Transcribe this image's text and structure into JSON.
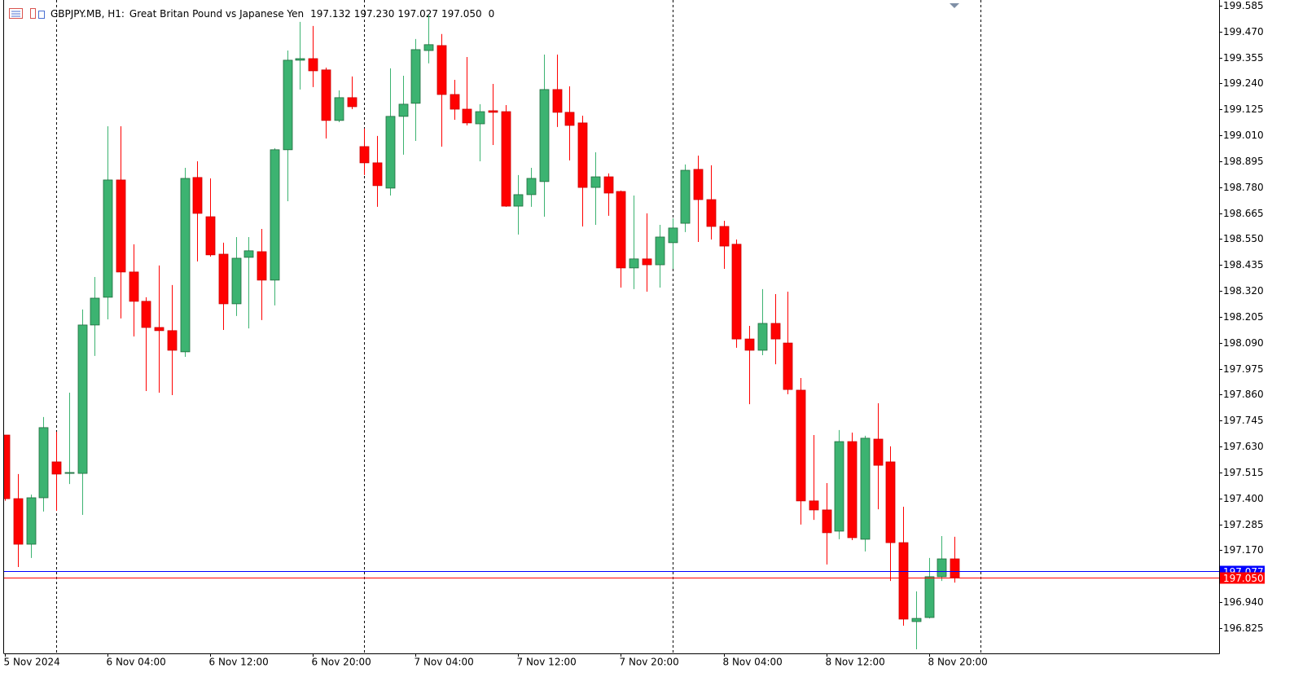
{
  "chart_data": {
    "type": "candlestick",
    "header_symbol": "GBPJPY.MB, H1:",
    "header_description": "Great Britan Pound vs Japanese Yen",
    "header_ohlc_labels": [
      "197.132",
      "197.230",
      "197.027",
      "197.050"
    ],
    "header_spread": 0,
    "categories": [
      "5 Nov 2024",
      null,
      null,
      null,
      null,
      null,
      null,
      null,
      "6 Nov 04:00",
      null,
      null,
      null,
      null,
      null,
      null,
      null,
      "6 Nov 12:00",
      null,
      null,
      null,
      null,
      null,
      null,
      null,
      "6 Nov 20:00",
      null,
      null,
      null,
      null,
      null,
      null,
      null,
      "7 Nov 04:00",
      null,
      null,
      null,
      null,
      null,
      null,
      null,
      "7 Nov 12:00",
      null,
      null,
      null,
      null,
      null,
      null,
      null,
      "7 Nov 20:00",
      null,
      null,
      null,
      null,
      null,
      null,
      null,
      "8 Nov 04:00",
      null,
      null,
      null,
      null,
      null,
      null,
      null,
      "8 Nov 12:00",
      null,
      null,
      null,
      null,
      null,
      null,
      null,
      "8 Nov 20:00",
      null,
      null
    ],
    "open": [
      197.681,
      197.399,
      197.197,
      197.403,
      197.562,
      197.511,
      197.511,
      198.169,
      198.292,
      198.812,
      198.404,
      198.274,
      198.158,
      198.144,
      198.05,
      198.823,
      198.649,
      198.483,
      198.263,
      198.469,
      198.494,
      198.368,
      198.946,
      199.343,
      199.35,
      199.3,
      199.076,
      199.177,
      198.96,
      198.888,
      198.776,
      199.094,
      199.152,
      199.386,
      199.408,
      199.191,
      199.126,
      199.061,
      199.119,
      199.115,
      198.696,
      198.747,
      198.805,
      199.213,
      199.112,
      199.065,
      198.779,
      198.826,
      198.761,
      198.422,
      198.462,
      198.436,
      198.534,
      198.62,
      198.859,
      198.725,
      198.606,
      198.527,
      198.107,
      198.057,
      198.176,
      198.089,
      197.88,
      197.389,
      197.349,
      197.255,
      197.652,
      197.219,
      197.663,
      197.562,
      197.204,
      196.854,
      196.872,
      197.053,
      197.132
    ],
    "high": [
      197.681,
      197.508,
      197.417,
      197.761,
      197.696,
      197.869,
      198.238,
      198.382,
      199.05,
      199.05,
      198.527,
      198.292,
      198.433,
      198.346,
      198.866,
      198.895,
      198.819,
      198.534,
      198.559,
      198.559,
      198.595,
      198.953,
      199.386,
      199.513,
      199.495,
      199.31,
      199.209,
      199.271,
      199.04,
      199.007,
      199.307,
      199.274,
      199.437,
      199.545,
      199.459,
      199.256,
      199.357,
      199.148,
      199.238,
      199.144,
      198.834,
      198.866,
      199.368,
      199.368,
      199.227,
      199.097,
      198.935,
      198.841,
      198.765,
      198.743,
      198.664,
      198.613,
      198.642,
      198.881,
      198.92,
      198.877,
      198.631,
      198.548,
      198.165,
      198.328,
      198.306,
      198.317,
      197.934,
      197.681,
      197.468,
      197.703,
      197.692,
      197.678,
      197.822,
      197.631,
      197.363,
      196.988,
      197.136,
      197.233,
      197.23
    ],
    "low": [
      197.39,
      197.096,
      197.136,
      197.342,
      197.345,
      197.464,
      197.327,
      198.032,
      198.194,
      198.198,
      198.118,
      197.876,
      197.869,
      197.858,
      198.028,
      198.451,
      198.472,
      198.147,
      198.209,
      198.154,
      198.191,
      198.256,
      198.718,
      199.213,
      199.224,
      198.996,
      199.068,
      199.126,
      198.834,
      198.693,
      198.743,
      198.924,
      198.985,
      199.329,
      198.96,
      199.079,
      199.054,
      198.895,
      198.967,
      198.693,
      198.57,
      198.693,
      198.649,
      199.047,
      198.899,
      198.606,
      198.613,
      198.653,
      198.335,
      198.328,
      198.317,
      198.335,
      198.418,
      198.581,
      198.537,
      198.548,
      198.418,
      198.068,
      197.818,
      198.035,
      197.995,
      197.862,
      197.284,
      197.305,
      197.107,
      197.219,
      197.215,
      197.165,
      197.352,
      197.034,
      196.836,
      196.731,
      196.868,
      197.034,
      197.027
    ],
    "close": [
      197.399,
      197.197,
      197.403,
      197.714,
      197.508,
      197.515,
      198.169,
      198.288,
      198.812,
      198.404,
      198.274,
      198.158,
      198.144,
      198.057,
      198.819,
      198.664,
      198.48,
      198.263,
      198.465,
      198.498,
      198.368,
      198.946,
      199.343,
      199.35,
      199.296,
      199.076,
      199.177,
      199.137,
      198.888,
      198.787,
      199.094,
      199.148,
      199.39,
      199.412,
      199.191,
      199.126,
      199.065,
      199.115,
      199.112,
      198.696,
      198.747,
      198.819,
      199.213,
      199.112,
      199.054,
      198.779,
      198.826,
      198.754,
      198.422,
      198.462,
      198.436,
      198.559,
      198.599,
      198.855,
      198.725,
      198.606,
      198.519,
      198.107,
      198.057,
      198.176,
      198.107,
      197.883,
      197.389,
      197.349,
      197.248,
      197.652,
      197.226,
      197.667,
      197.547,
      197.204,
      196.865,
      196.868,
      197.053,
      197.132,
      197.05
    ],
    "up_color": "#3cb371",
    "down_color": "#ff0000",
    "ylim": [
      196.713,
      199.61
    ],
    "yticks": [
      199.585,
      {
        "value": 199.47,
        "label": "199.470"
      },
      199.355,
      {
        "value": 199.24,
        "label": "199.240"
      },
      199.125,
      {
        "value": 199.01,
        "label": "199.010"
      },
      198.895,
      {
        "value": 198.78,
        "label": "198.780"
      },
      198.665,
      {
        "value": 198.55,
        "label": "198.550"
      },
      198.435,
      {
        "value": 198.32,
        "label": "198.320"
      },
      198.205,
      {
        "value": 198.09,
        "label": "198.090"
      },
      197.975,
      {
        "value": 197.86,
        "label": "197.860"
      },
      197.745,
      {
        "value": 197.63,
        "label": "197.630"
      },
      197.515,
      {
        "value": 197.4,
        "label": "197.400"
      },
      197.285,
      {
        "value": 197.17,
        "label": "197.170"
      },
      {
        "value": 196.94,
        "label": "196.940"
      },
      196.825
    ],
    "price_lines": [
      {
        "value": 197.077,
        "label": "197.077",
        "color": "#0000ff"
      },
      {
        "value": 197.05,
        "label": "197.050",
        "color": "#ff0000"
      }
    ],
    "grid": false
  }
}
